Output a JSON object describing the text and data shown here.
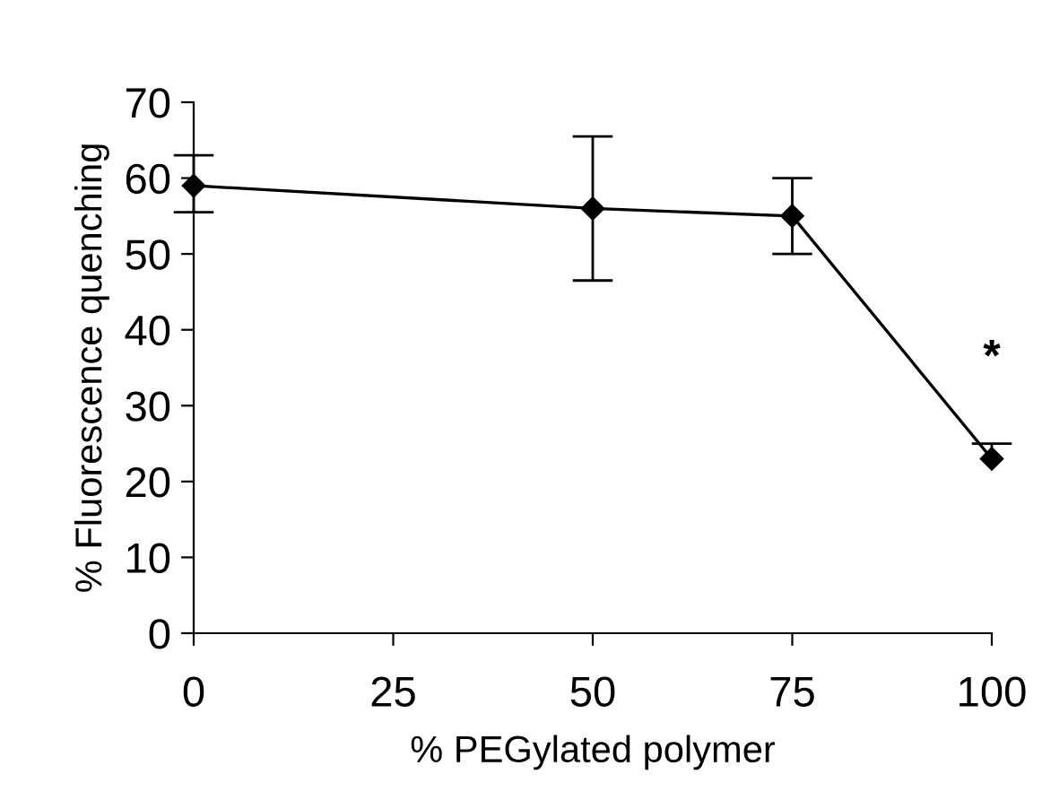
{
  "chart_data": {
    "type": "line",
    "xlabel": "% PEGylated polymer",
    "ylabel": "% Fluorescence quenching",
    "x": [
      0,
      50,
      75,
      100
    ],
    "series": [
      {
        "color": "#000000",
        "values": [
          59,
          56,
          55,
          23
        ],
        "errors": [
          [
            55.5,
            63
          ],
          [
            46.5,
            65.5
          ],
          [
            50,
            60
          ],
          [
            23,
            25
          ]
        ]
      }
    ],
    "xlim": [
      0,
      100
    ],
    "xticks": [
      0,
      25,
      50,
      75,
      100
    ],
    "ylim": [
      0,
      70
    ],
    "yticks": [
      0,
      10,
      20,
      30,
      40,
      50,
      60,
      70
    ],
    "marker": "diamond",
    "line_style": "solid",
    "grid": false,
    "legend": false,
    "annotations": [
      "*"
    ]
  }
}
